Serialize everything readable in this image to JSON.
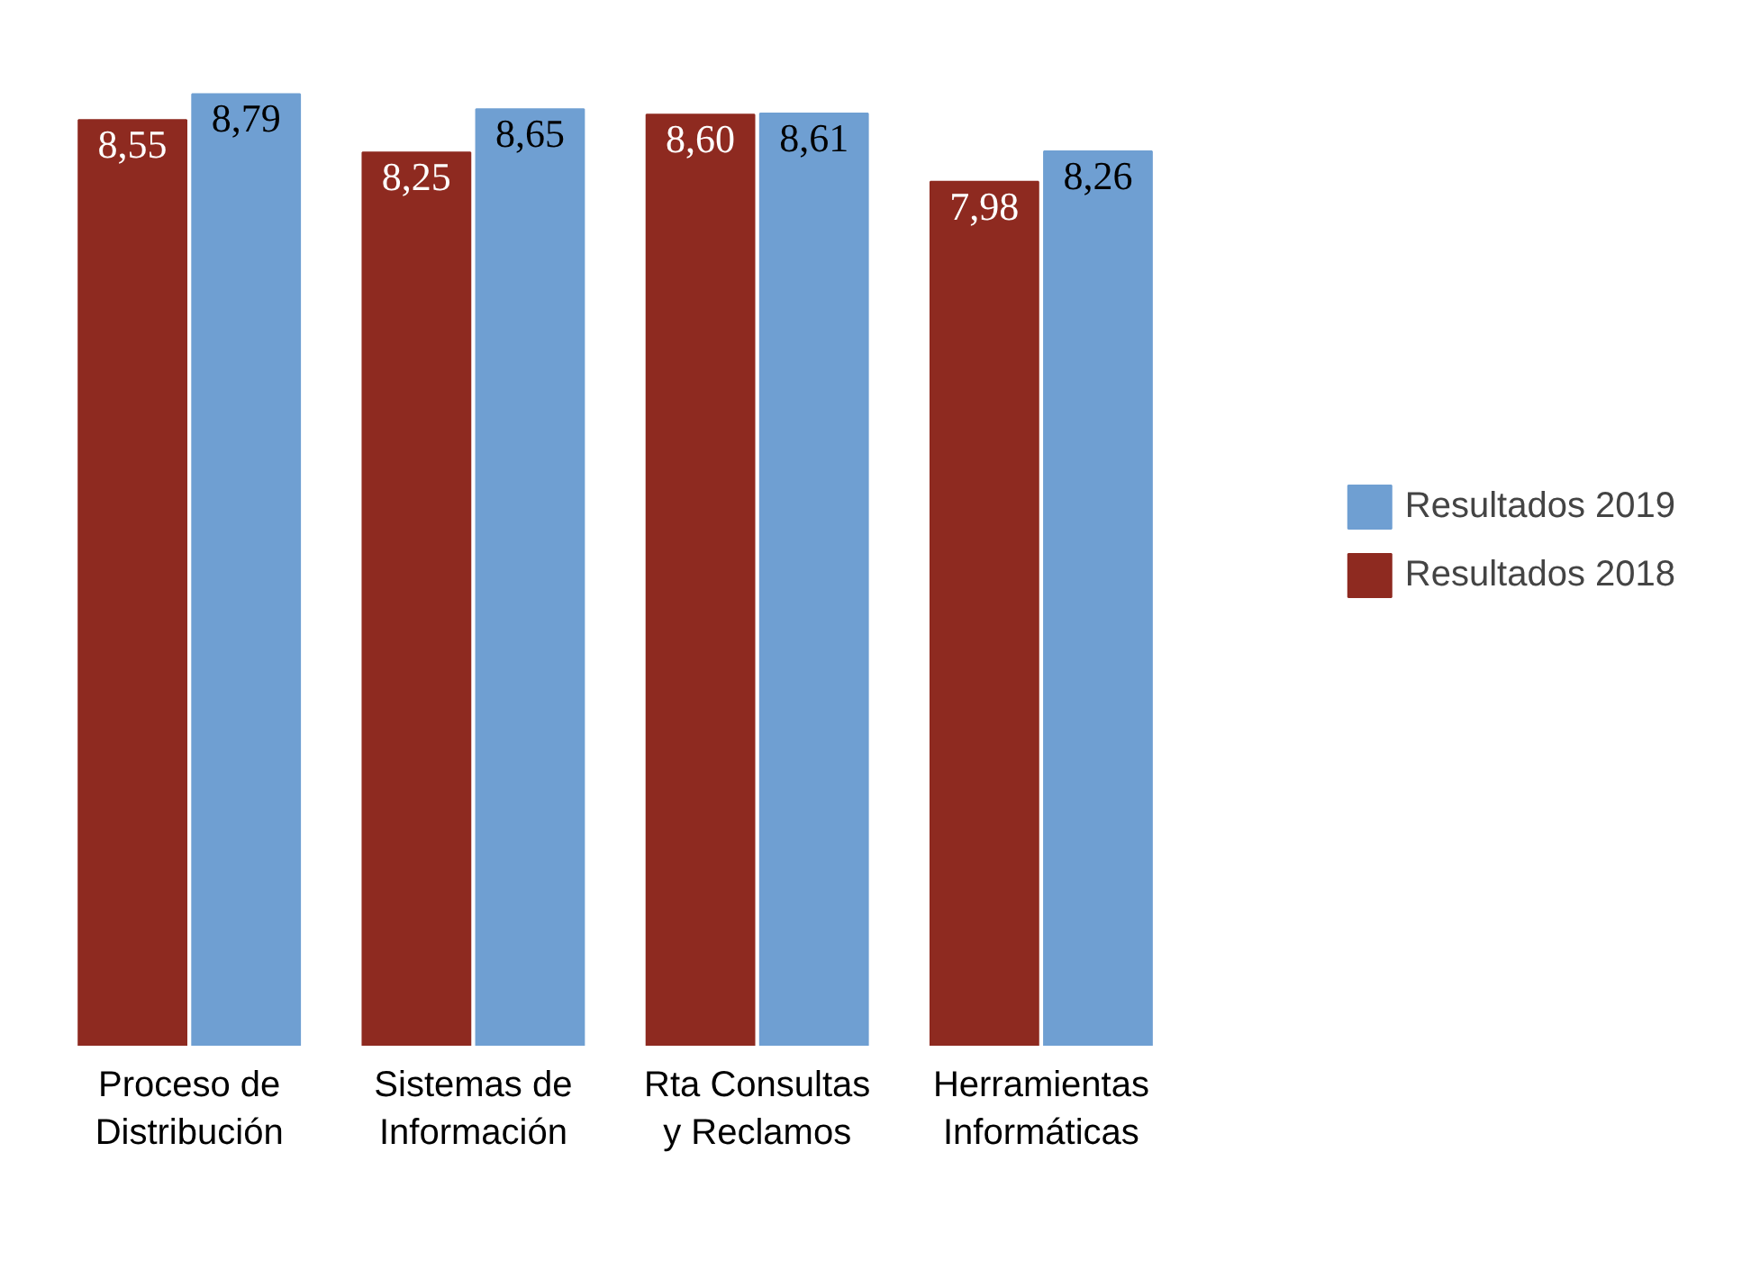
{
  "chart_data": {
    "type": "bar",
    "categories": [
      "Proceso de Distribución",
      "Sistemas de Información",
      "Rta Consultas y Reclamos",
      "Herramientas Informáticas"
    ],
    "series": [
      {
        "name": "Resultados 2018",
        "color": "#8e2a20",
        "values": [
          8.55,
          8.25,
          8.6,
          7.98
        ],
        "value_labels": [
          "8,55",
          "8,25",
          "8,60",
          "7,98"
        ]
      },
      {
        "name": "Resultados 2019",
        "color": "#6f9fd2",
        "values": [
          8.79,
          8.65,
          8.61,
          8.26
        ],
        "value_labels": [
          "8,79",
          "8,65",
          "8,61",
          "8,26"
        ]
      }
    ],
    "legend": "right",
    "grid": false
  }
}
